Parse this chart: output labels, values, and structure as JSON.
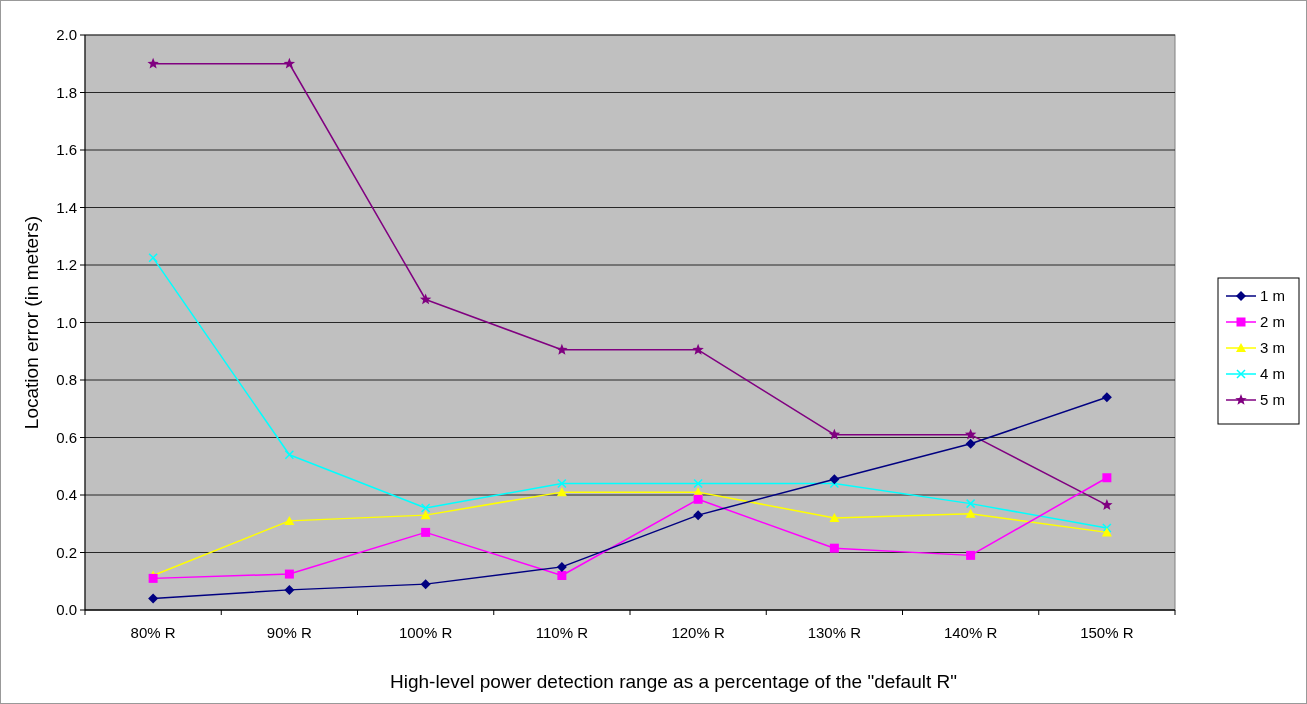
{
  "chart_data": {
    "type": "line",
    "xlabel": "High-level power detection range as a percentage of the \"default R\"",
    "ylabel": "Location error (in meters)",
    "categories": [
      "80% R",
      "90% R",
      "100% R",
      "110% R",
      "120% R",
      "130% R",
      "140% R",
      "150% R"
    ],
    "series": [
      {
        "name": "1 m",
        "color": "#000080",
        "marker": "diamond",
        "values": [
          0.04,
          0.07,
          0.09,
          0.15,
          0.33,
          0.455,
          0.578,
          0.74
        ]
      },
      {
        "name": "2 m",
        "color": "#ff00ff",
        "marker": "square",
        "values": [
          0.11,
          0.125,
          0.27,
          0.12,
          0.385,
          0.215,
          0.19,
          0.46
        ]
      },
      {
        "name": "3 m",
        "color": "#ffff00",
        "marker": "triangle",
        "values": [
          0.12,
          0.31,
          0.33,
          0.41,
          0.41,
          0.32,
          0.335,
          0.27
        ]
      },
      {
        "name": "4 m",
        "color": "#00ffff",
        "marker": "cross",
        "values": [
          1.225,
          0.54,
          0.355,
          0.44,
          0.44,
          0.44,
          0.37,
          0.285
        ]
      },
      {
        "name": "5 m",
        "color": "#800080",
        "marker": "star",
        "values": [
          1.9,
          1.9,
          1.08,
          0.905,
          0.905,
          0.61,
          0.61,
          0.365
        ]
      }
    ],
    "ylim": [
      0,
      2
    ],
    "yticks": [
      {
        "value": 0,
        "label": "0.0"
      },
      {
        "value": 0.2,
        "label": "0.2"
      },
      {
        "value": 0.4,
        "label": "0.4"
      },
      {
        "value": 0.6,
        "label": "0.6"
      },
      {
        "value": 0.8,
        "label": "0.8"
      },
      {
        "value": 1,
        "label": "1.0"
      },
      {
        "value": 1.2,
        "label": "1.2"
      },
      {
        "value": 1.4,
        "label": "1.4"
      },
      {
        "value": 1.6,
        "label": "1.6"
      },
      {
        "value": 1.8,
        "label": "1.8"
      },
      {
        "value": 2,
        "label": "2.0"
      }
    ],
    "grid": "y",
    "legend": "right"
  }
}
